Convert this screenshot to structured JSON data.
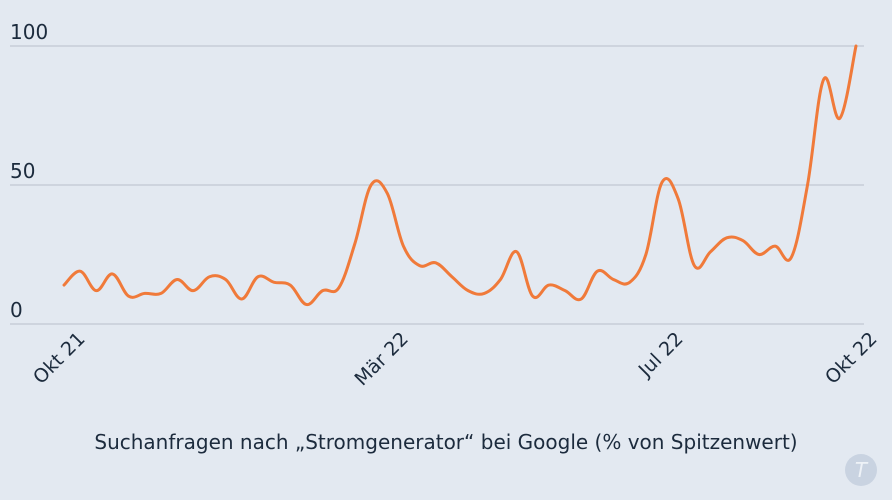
{
  "chart_data": {
    "type": "line",
    "title": "Suchanfragen nach „Stromgenerator“ bei Google (% von Spitzenwert)",
    "xlabel": "",
    "ylabel": "",
    "ylim": [
      0,
      100
    ],
    "yticks": [
      0,
      50,
      100
    ],
    "ytick_labels": [
      "0",
      "50",
      "100"
    ],
    "grid": true,
    "x_tick_labels": [
      {
        "label": "Okt 21",
        "index": 0
      },
      {
        "label": "Mär 22",
        "index": 20
      },
      {
        "label": "Jul 22",
        "index": 37
      },
      {
        "label": "Okt 22",
        "index": 49
      }
    ],
    "series": [
      {
        "name": "Stromgenerator",
        "color": "#f07a3a",
        "values": [
          14,
          19,
          12,
          18,
          10,
          11,
          11,
          16,
          12,
          17,
          16,
          9,
          17,
          15,
          14,
          7,
          12,
          13,
          29,
          50,
          47,
          28,
          21,
          22,
          17,
          12,
          11,
          16,
          26,
          10,
          14,
          12,
          9,
          19,
          16,
          15,
          25,
          51,
          45,
          21,
          26,
          31,
          30,
          25,
          28,
          24,
          50,
          88,
          74,
          100
        ]
      }
    ]
  },
  "watermark": "T"
}
